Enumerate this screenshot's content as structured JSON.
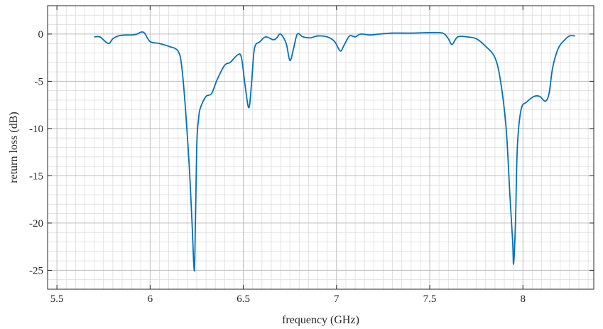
{
  "chart_data": {
    "type": "line",
    "title": "",
    "xlabel": "frequency (GHz)",
    "ylabel": "return loss (dB)",
    "xlim": [
      5.45,
      8.38
    ],
    "ylim": [
      -27,
      3
    ],
    "xticks": [
      5.5,
      6,
      6.5,
      7,
      7.5,
      8
    ],
    "xtick_labels": [
      "5.5",
      "6",
      "6.5",
      "7",
      "7.5",
      "8"
    ],
    "yticks": [
      0,
      -5,
      -10,
      -15,
      -20,
      -25
    ],
    "ytick_labels": [
      "0",
      "-5",
      "-10",
      "-15",
      "-20",
      "-25"
    ],
    "grid": "on (major and minor)",
    "line_color": "#0072BD",
    "series": [
      {
        "x": [
          5.7,
          5.73,
          5.76,
          5.78,
          5.8,
          5.83,
          5.87,
          5.9,
          5.93,
          5.95,
          5.97,
          6.0,
          6.05,
          6.1,
          6.15,
          6.17,
          6.19,
          6.21,
          6.225,
          6.235,
          6.24,
          6.25,
          6.26,
          6.27,
          6.3,
          6.33,
          6.36,
          6.4,
          6.43,
          6.47,
          6.49,
          6.51,
          6.53,
          6.545,
          6.56,
          6.59,
          6.62,
          6.66,
          6.68,
          6.7,
          6.73,
          6.75,
          6.77,
          6.79,
          6.82,
          6.86,
          6.9,
          6.95,
          6.99,
          7.02,
          7.04,
          7.07,
          7.1,
          7.13,
          7.18,
          7.23,
          7.3,
          7.4,
          7.5,
          7.57,
          7.6,
          7.62,
          7.65,
          7.7,
          7.75,
          7.8,
          7.85,
          7.88,
          7.91,
          7.93,
          7.945,
          7.95,
          7.96,
          7.97,
          7.99,
          8.02,
          8.06,
          8.09,
          8.12,
          8.14,
          8.16,
          8.19,
          8.22,
          8.25,
          8.28
        ],
        "y": [
          -0.3,
          -0.3,
          -0.8,
          -1.0,
          -0.5,
          -0.2,
          -0.1,
          -0.1,
          0.0,
          0.2,
          0.1,
          -0.8,
          -1.0,
          -1.3,
          -1.8,
          -3.5,
          -8.0,
          -14.0,
          -20.0,
          -24.6,
          -23.5,
          -12.0,
          -9.0,
          -7.8,
          -6.6,
          -6.3,
          -4.8,
          -3.3,
          -3.0,
          -2.2,
          -2.5,
          -5.5,
          -7.8,
          -5.0,
          -1.5,
          -0.8,
          -0.3,
          -0.6,
          -0.4,
          0.0,
          -1.0,
          -2.8,
          -1.5,
          0.0,
          -0.3,
          -0.4,
          -0.2,
          -0.3,
          -0.8,
          -1.8,
          -1.2,
          -0.2,
          -0.3,
          0.0,
          -0.1,
          0.0,
          0.1,
          0.1,
          0.15,
          0.1,
          -0.5,
          -1.1,
          -0.3,
          -0.3,
          -0.5,
          -1.3,
          -2.5,
          -5.0,
          -10.0,
          -17.0,
          -22.0,
          -24.3,
          -20.0,
          -12.0,
          -8.0,
          -7.2,
          -6.6,
          -6.6,
          -7.1,
          -6.3,
          -3.5,
          -1.5,
          -0.7,
          -0.2,
          -0.2
        ]
      }
    ]
  }
}
